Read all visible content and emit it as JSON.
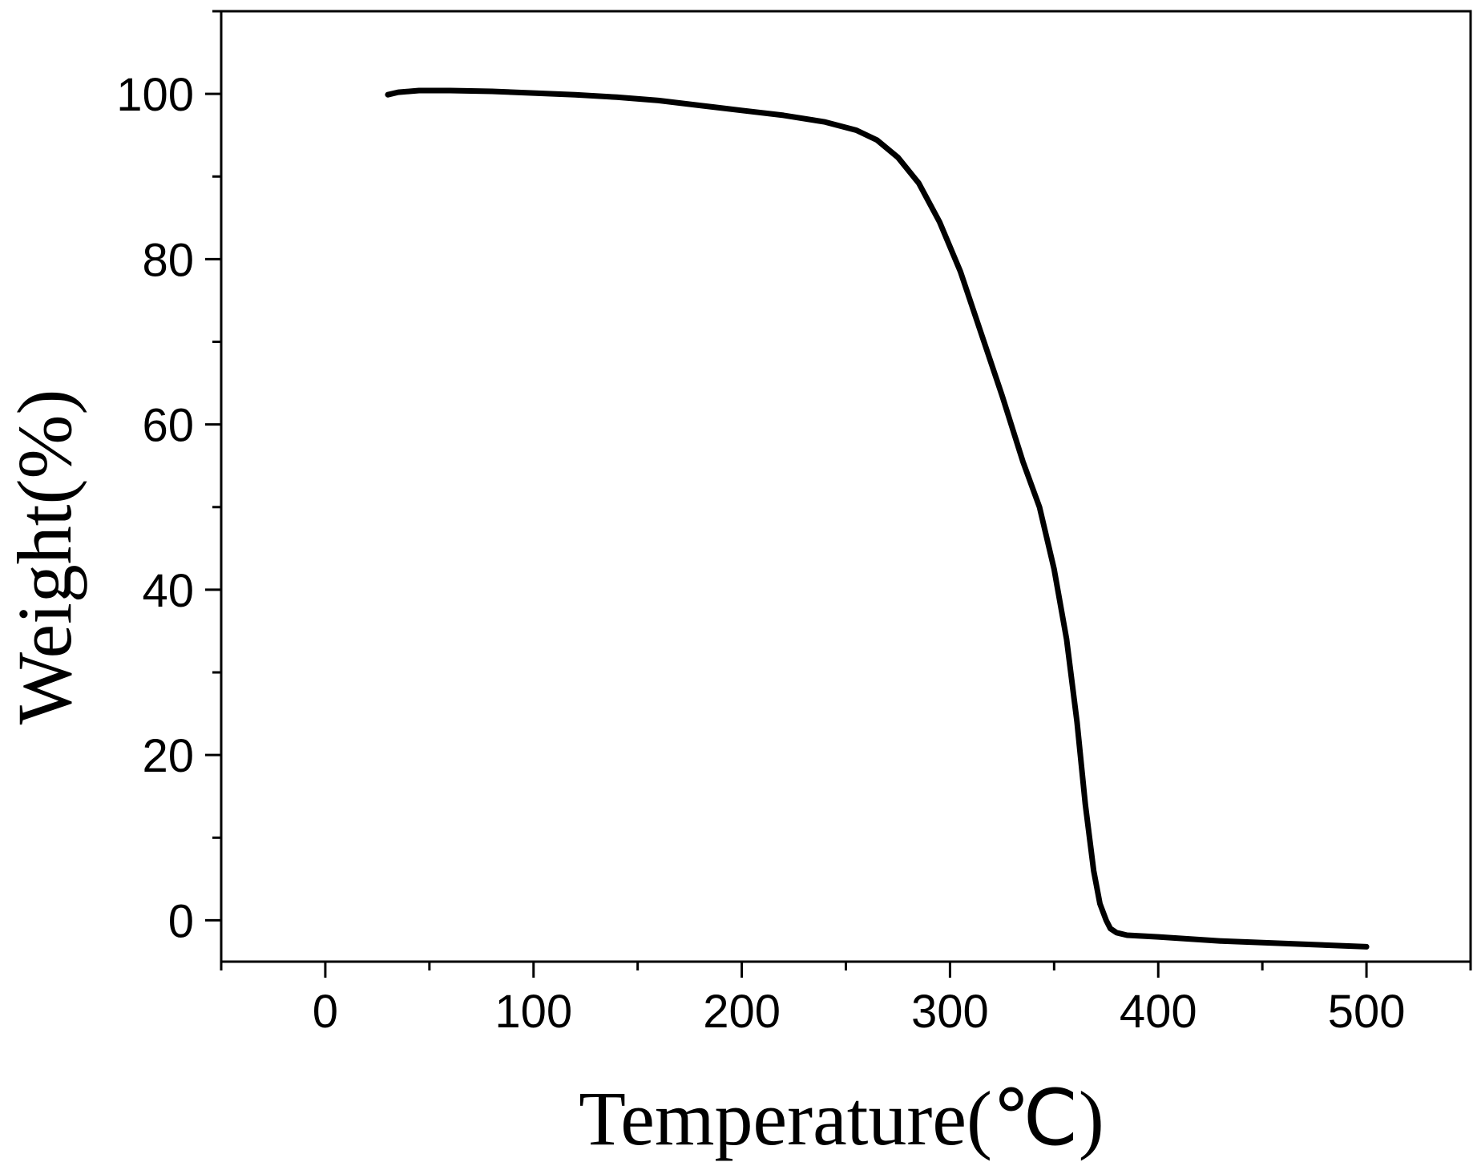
{
  "chart_data": {
    "type": "line",
    "title": "",
    "xlabel": "Temperature(℃)",
    "ylabel": "Weight(%)",
    "xlim": [
      -50,
      550
    ],
    "ylim": [
      -5,
      110
    ],
    "xticks": [
      0,
      100,
      200,
      300,
      400,
      500
    ],
    "yticks": [
      0,
      20,
      40,
      60,
      80,
      100
    ],
    "xtick_labels": [
      "0",
      "100",
      "200",
      "300",
      "400",
      "500"
    ],
    "ytick_labels": [
      "0",
      "20",
      "40",
      "60",
      "80",
      "100"
    ],
    "x_minor_step": 50,
    "y_minor_step": 10,
    "grid": false,
    "legend": "none",
    "line_color": "#000000",
    "series": [
      {
        "x": [
          30,
          35,
          45,
          60,
          80,
          100,
          120,
          140,
          160,
          180,
          200,
          220,
          240,
          255,
          265,
          275,
          285,
          295,
          305,
          315,
          325,
          335,
          343,
          350,
          356,
          361,
          365,
          369,
          372,
          375,
          377,
          380,
          385,
          400,
          430,
          460,
          500
        ],
        "y": [
          99.9,
          100.2,
          100.4,
          100.4,
          100.3,
          100.1,
          99.9,
          99.6,
          99.2,
          98.6,
          98.0,
          97.4,
          96.6,
          95.6,
          94.4,
          92.3,
          89.2,
          84.5,
          78.5,
          71.0,
          63.5,
          55.5,
          50.0,
          42.5,
          34.0,
          24.0,
          14.0,
          6.0,
          2.0,
          0.0,
          -1.0,
          -1.5,
          -1.8,
          -2.0,
          -2.5,
          -2.8,
          -3.2
        ]
      }
    ]
  }
}
